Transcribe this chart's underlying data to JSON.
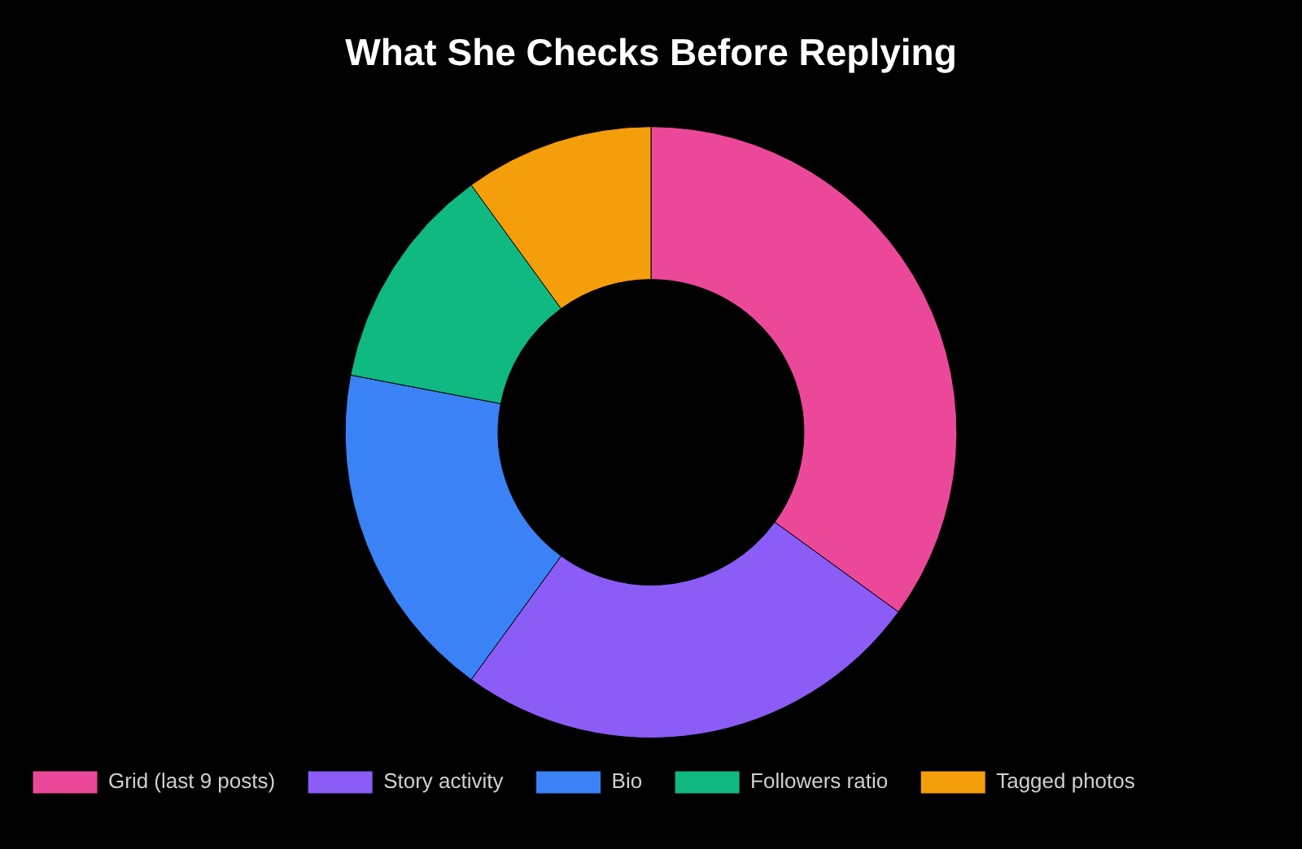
{
  "chart_data": {
    "type": "donut",
    "title": "What She Checks Before Replying",
    "categories": [
      "Grid (last 9 posts)",
      "Story activity",
      "Bio",
      "Followers ratio",
      "Tagged photos"
    ],
    "values": [
      35,
      25,
      18,
      12,
      10
    ],
    "colors": [
      "#ec4899",
      "#8b5cf6",
      "#3b82f6",
      "#10b981",
      "#f59e0b"
    ],
    "legend": "bottom"
  }
}
